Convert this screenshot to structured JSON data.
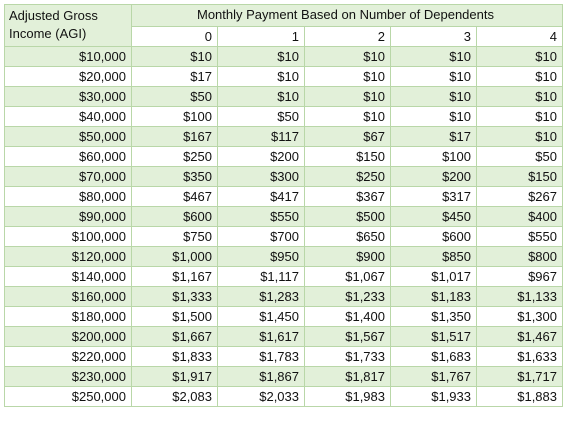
{
  "header": {
    "agi_line1": "Adjusted Gross",
    "agi_line2": "Income (AGI)",
    "title": "Monthly Payment Based on Number of Dependents",
    "dependents": [
      "0",
      "1",
      "2",
      "3",
      "4"
    ]
  },
  "rows": [
    {
      "agi": "$10,000",
      "payments": [
        "$10",
        "$10",
        "$10",
        "$10",
        "$10"
      ]
    },
    {
      "agi": "$20,000",
      "payments": [
        "$17",
        "$10",
        "$10",
        "$10",
        "$10"
      ]
    },
    {
      "agi": "$30,000",
      "payments": [
        "$50",
        "$10",
        "$10",
        "$10",
        "$10"
      ]
    },
    {
      "agi": "$40,000",
      "payments": [
        "$100",
        "$50",
        "$10",
        "$10",
        "$10"
      ]
    },
    {
      "agi": "$50,000",
      "payments": [
        "$167",
        "$117",
        "$67",
        "$17",
        "$10"
      ]
    },
    {
      "agi": "$60,000",
      "payments": [
        "$250",
        "$200",
        "$150",
        "$100",
        "$50"
      ]
    },
    {
      "agi": "$70,000",
      "payments": [
        "$350",
        "$300",
        "$250",
        "$200",
        "$150"
      ]
    },
    {
      "agi": "$80,000",
      "payments": [
        "$467",
        "$417",
        "$367",
        "$317",
        "$267"
      ]
    },
    {
      "agi": "$90,000",
      "payments": [
        "$600",
        "$550",
        "$500",
        "$450",
        "$400"
      ]
    },
    {
      "agi": "$100,000",
      "payments": [
        "$750",
        "$700",
        "$650",
        "$600",
        "$550"
      ]
    },
    {
      "agi": "$120,000",
      "payments": [
        "$1,000",
        "$950",
        "$900",
        "$850",
        "$800"
      ]
    },
    {
      "agi": "$140,000",
      "payments": [
        "$1,167",
        "$1,117",
        "$1,067",
        "$1,017",
        "$967"
      ]
    },
    {
      "agi": "$160,000",
      "payments": [
        "$1,333",
        "$1,283",
        "$1,233",
        "$1,183",
        "$1,133"
      ]
    },
    {
      "agi": "$180,000",
      "payments": [
        "$1,500",
        "$1,450",
        "$1,400",
        "$1,350",
        "$1,300"
      ]
    },
    {
      "agi": "$200,000",
      "payments": [
        "$1,667",
        "$1,617",
        "$1,567",
        "$1,517",
        "$1,467"
      ]
    },
    {
      "agi": "$220,000",
      "payments": [
        "$1,833",
        "$1,783",
        "$1,733",
        "$1,683",
        "$1,633"
      ]
    },
    {
      "agi": "$230,000",
      "payments": [
        "$1,917",
        "$1,867",
        "$1,817",
        "$1,767",
        "$1,717"
      ]
    },
    {
      "agi": "$250,000",
      "payments": [
        "$2,083",
        "$2,033",
        "$1,983",
        "$1,933",
        "$1,883"
      ]
    }
  ],
  "colors": {
    "band_green": "#e2f0d9",
    "grid": "#b9d7a8",
    "white": "#ffffff"
  }
}
